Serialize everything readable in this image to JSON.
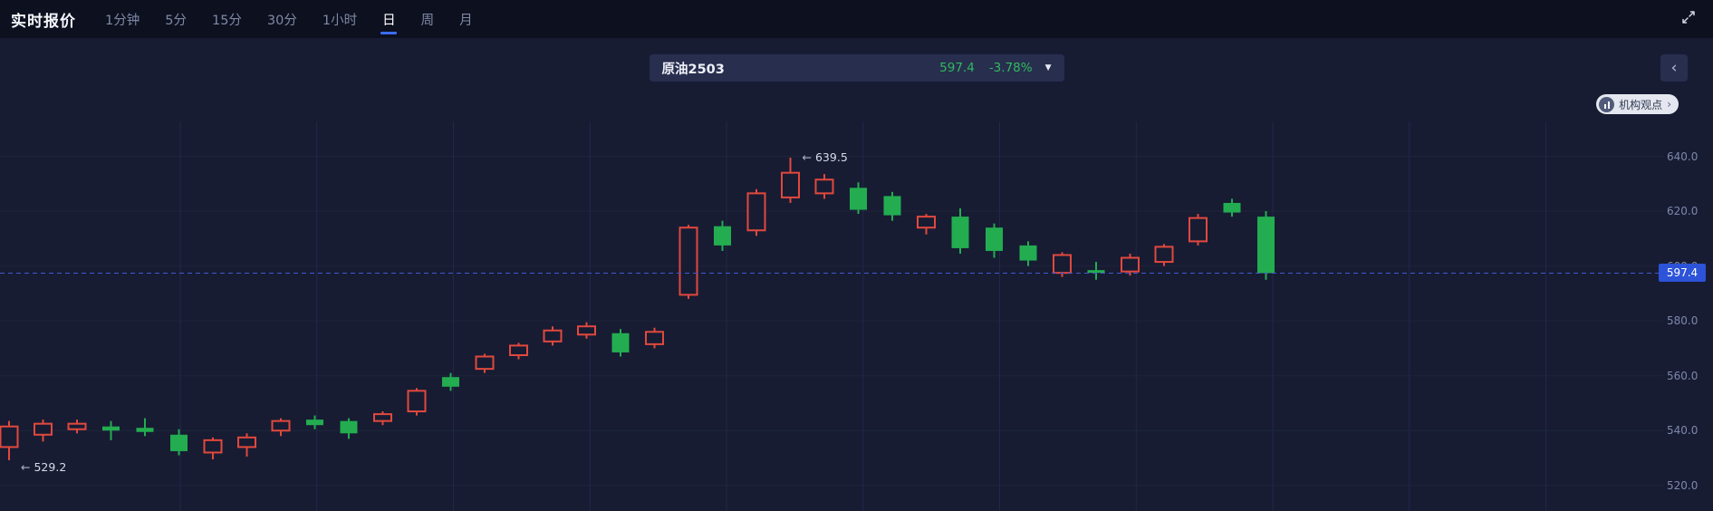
{
  "header": {
    "title": "实时报价",
    "tabs": [
      {
        "label": "1分钟",
        "active": false
      },
      {
        "label": "5分",
        "active": false
      },
      {
        "label": "15分",
        "active": false
      },
      {
        "label": "30分",
        "active": false
      },
      {
        "label": "1小时",
        "active": false
      },
      {
        "label": "日",
        "active": true
      },
      {
        "label": "周",
        "active": false
      },
      {
        "label": "月",
        "active": false
      }
    ]
  },
  "instrument": {
    "name": "原油2503",
    "price": "597.4",
    "change": "-3.78%",
    "caret": "▼"
  },
  "side_panel": {
    "toggle_glyph": "‹",
    "org_view_label": "机构观点",
    "org_view_chevron": "›"
  },
  "chart_data": {
    "type": "candlestick",
    "symbol": "原油2503",
    "timeframe": "日",
    "current_price": 597.4,
    "current_price_label": "597.4",
    "y_axis": {
      "ticks": [
        640,
        620,
        600,
        580,
        560,
        540,
        520
      ],
      "decimals": 1
    },
    "annotations": [
      {
        "text": "639.5",
        "arrow": "←",
        "candle_index": 23,
        "price": 639.5,
        "placement": "high"
      },
      {
        "text": "529.2",
        "arrow": "←",
        "candle_index": 0,
        "price": 529.2,
        "placement": "low"
      }
    ],
    "colors": {
      "up": "#e2483d",
      "down": "#23ad50",
      "grid": "#20274a",
      "grid_h": "rgba(255,255,255,0.035)",
      "current_line": "#4258cc",
      "tag_bg": "#2d53d8",
      "background": "#171c33"
    },
    "candles": [
      [
        534.0,
        543.5,
        529.2,
        541.5
      ],
      [
        538.5,
        544.0,
        536.0,
        542.5
      ],
      [
        540.5,
        544.0,
        539.0,
        542.5
      ],
      [
        541.5,
        543.5,
        536.5,
        540.0
      ],
      [
        541.0,
        544.5,
        538.0,
        539.5
      ],
      [
        538.5,
        540.5,
        531.0,
        532.5
      ],
      [
        532.0,
        537.5,
        529.5,
        536.5
      ],
      [
        534.0,
        539.0,
        530.5,
        537.5
      ],
      [
        540.0,
        544.5,
        538.0,
        543.5
      ],
      [
        544.0,
        545.5,
        540.5,
        542.0
      ],
      [
        543.5,
        544.5,
        537.0,
        539.0
      ],
      [
        543.5,
        547.0,
        542.0,
        546.0
      ],
      [
        547.0,
        555.5,
        545.5,
        554.5
      ],
      [
        559.5,
        561.0,
        554.5,
        556.0
      ],
      [
        562.5,
        568.0,
        561.0,
        567.0
      ],
      [
        567.5,
        572.0,
        566.0,
        571.0
      ],
      [
        572.5,
        578.0,
        571.0,
        576.5
      ],
      [
        575.0,
        579.5,
        573.5,
        578.0
      ],
      [
        575.5,
        577.0,
        567.0,
        568.5
      ],
      [
        571.5,
        577.5,
        570.0,
        576.0
      ],
      [
        589.5,
        615.0,
        588.0,
        614.0
      ],
      [
        614.5,
        616.5,
        605.5,
        607.5
      ],
      [
        613.0,
        628.0,
        611.0,
        626.5
      ],
      [
        625.0,
        639.5,
        623.0,
        634.0
      ],
      [
        626.5,
        633.5,
        624.5,
        631.5
      ],
      [
        628.5,
        630.5,
        619.0,
        620.5
      ],
      [
        625.5,
        627.0,
        616.5,
        618.5
      ],
      [
        614.0,
        619.0,
        611.5,
        618.0
      ],
      [
        618.0,
        621.0,
        604.5,
        606.5
      ],
      [
        614.0,
        615.5,
        603.0,
        605.5
      ],
      [
        607.5,
        609.0,
        600.0,
        602.0
      ],
      [
        597.5,
        605.0,
        596.0,
        604.0
      ],
      [
        598.5,
        601.5,
        595.0,
        597.5
      ],
      [
        598.0,
        604.5,
        596.5,
        603.0
      ],
      [
        601.5,
        608.0,
        600.0,
        607.0
      ],
      [
        609.0,
        619.0,
        607.5,
        617.5
      ],
      [
        623.0,
        624.5,
        618.0,
        619.5
      ],
      [
        618.0,
        620.0,
        595.0,
        597.4
      ]
    ]
  }
}
